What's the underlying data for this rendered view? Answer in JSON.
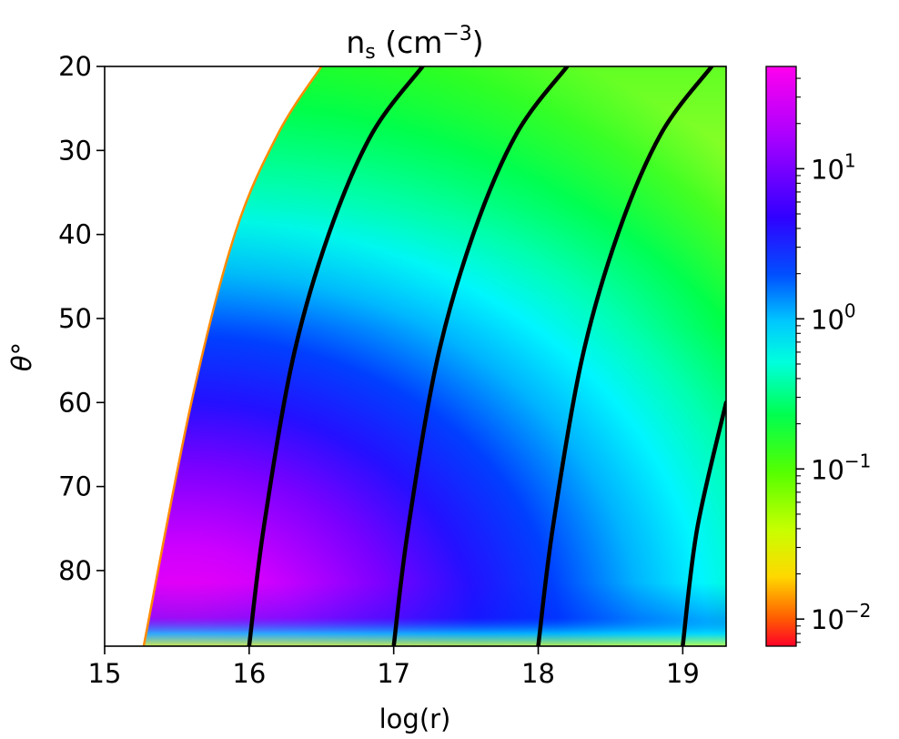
{
  "chart_data": {
    "type": "heatmap",
    "title": {
      "base": "n",
      "sub": "s",
      "rest": " (cm",
      "sup": "−3",
      "end": ")"
    },
    "xlabel": "log(r)",
    "ylabel": {
      "symbol": "θ",
      "degree": "°"
    },
    "xlim": [
      15,
      19.3
    ],
    "ylim": [
      89,
      20
    ],
    "y_inverted": true,
    "grid": false,
    "xticks": [
      {
        "value": 15,
        "label": "15"
      },
      {
        "value": 16,
        "label": "16"
      },
      {
        "value": 17,
        "label": "17"
      },
      {
        "value": 18,
        "label": "18"
      },
      {
        "value": 19,
        "label": "19"
      }
    ],
    "yticks": [
      {
        "value": 20,
        "label": "20"
      },
      {
        "value": 30,
        "label": "30"
      },
      {
        "value": 40,
        "label": "40"
      },
      {
        "value": 50,
        "label": "50"
      },
      {
        "value": 60,
        "label": "60"
      },
      {
        "value": 70,
        "label": "70"
      },
      {
        "value": 80,
        "label": "80"
      }
    ],
    "colorbar": {
      "scale": "log",
      "range": [
        0.0066,
        48
      ],
      "colormap": "gist_rainbow_r",
      "colors": [
        "#ff0028",
        "#ffd800",
        "#55ff00",
        "#00ff8a",
        "#00ffff",
        "#0028ff",
        "#8800ff",
        "#ff00ee"
      ],
      "ticks": [
        {
          "value": 0.01,
          "base": "10",
          "exp": "−2"
        },
        {
          "value": 0.1,
          "base": "10",
          "exp": "−1"
        },
        {
          "value": 1,
          "base": "10",
          "exp": "0"
        },
        {
          "value": 10,
          "base": "10",
          "exp": "1"
        }
      ]
    },
    "data_boundary": {
      "description_points": [
        [
          15.27,
          89
        ],
        [
          15.6,
          60
        ],
        [
          15.9,
          40
        ],
        [
          16.2,
          28
        ],
        [
          16.5,
          20
        ]
      ]
    },
    "contours": [
      {
        "name": "log r = 16",
        "points": [
          [
            16.0,
            89
          ],
          [
            16.1,
            75
          ],
          [
            16.3,
            55
          ],
          [
            16.55,
            40
          ],
          [
            16.85,
            28
          ],
          [
            17.2,
            20
          ]
        ]
      },
      {
        "name": "log r = 17",
        "points": [
          [
            17.0,
            89
          ],
          [
            17.1,
            75
          ],
          [
            17.3,
            55
          ],
          [
            17.55,
            40
          ],
          [
            17.85,
            28
          ],
          [
            18.2,
            20
          ]
        ]
      },
      {
        "name": "log r = 18",
        "points": [
          [
            18.0,
            89
          ],
          [
            18.1,
            75
          ],
          [
            18.3,
            55
          ],
          [
            18.55,
            40
          ],
          [
            18.85,
            28
          ],
          [
            19.2,
            20
          ]
        ]
      },
      {
        "name": "log r = 19",
        "points": [
          [
            19.0,
            89
          ],
          [
            19.1,
            75
          ],
          [
            19.3,
            60
          ]
        ]
      }
    ]
  }
}
